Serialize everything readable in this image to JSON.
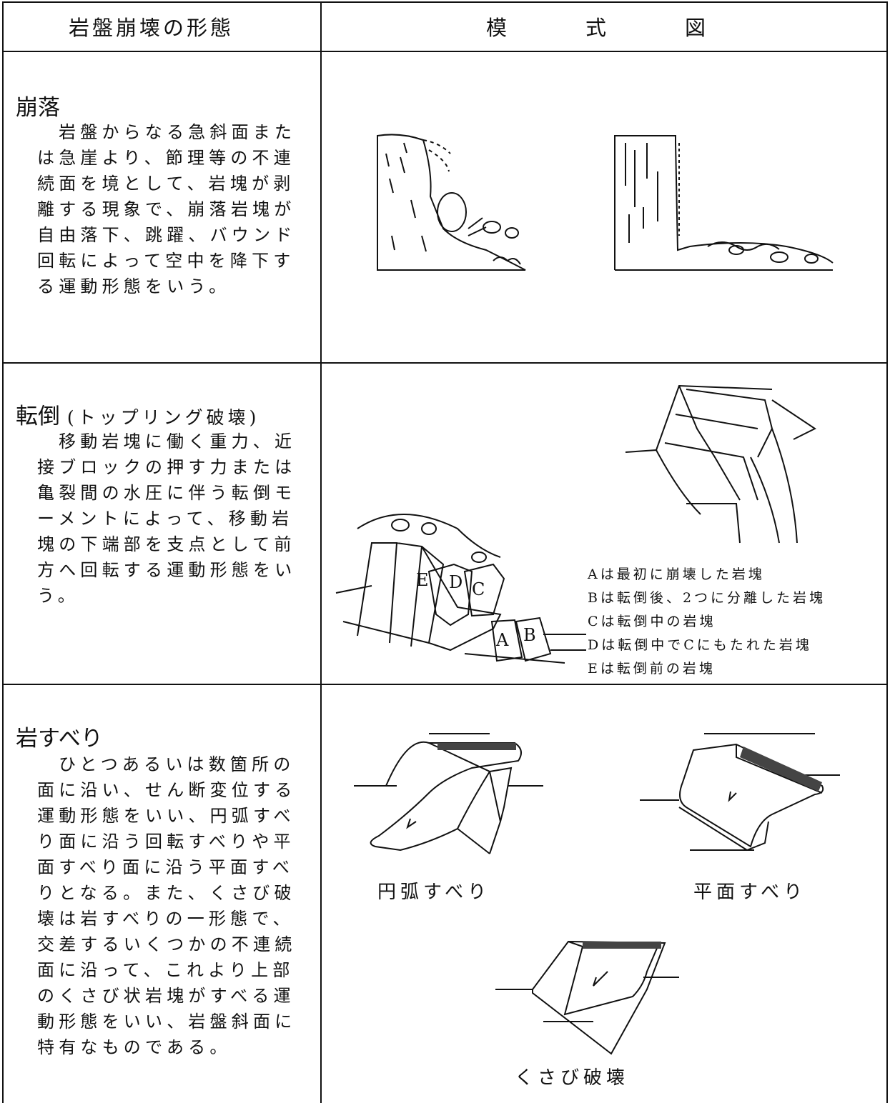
{
  "header": {
    "form": "岩盤崩壊の形態",
    "diagram": "模式図"
  },
  "rows": [
    {
      "title": "崩落",
      "description": [
        "岩盤からなる急斜面また",
        "は急崖より、節理等の不連",
        "続面を境として、岩塊が剥",
        "離する現象で、崩落岩塊が",
        "自由落下、跳躍、バウンド",
        "回転によって空中を降下す",
        "る運動形態をいう。"
      ]
    },
    {
      "title": "転倒",
      "subtitle": "(トップリング破壊)",
      "description": [
        "移動岩塊に働く重力、近",
        "接ブロックの押す力または",
        "亀裂間の水圧に伴う転倒モ",
        "ーメントによって、移動岩",
        "塊の下端部を支点として前",
        "方へ回転する運動形態をい",
        "う。"
      ],
      "diagram_labels": [
        "E",
        "D",
        "C",
        "A",
        "B"
      ],
      "legend": [
        "Aは最初に崩壊した岩塊",
        "Bは転倒後、2つに分離した岩塊",
        "Cは転倒中の岩塊",
        "Dは転倒中でCにもたれた岩塊",
        "Eは転倒前の岩塊"
      ]
    },
    {
      "title": "岩すべり",
      "description": [
        "ひとつあるいは数箇所の",
        "面に沿い、せん断変位する",
        "運動形態をいい、円弧すべ",
        "り面に沿う回転すべりや平",
        "面すべり面に沿う平面すべ",
        "りとなる。また、くさび破",
        "壊は岩すべりの一形態で、",
        "交差するいくつかの不連続",
        "面に沿って、これより上部",
        "のくさび状岩塊がすべる運",
        "動形態をいい、岩盤斜面に",
        "特有なものである。"
      ],
      "captions": [
        "円弧すべり",
        "平面すべり",
        "くさび破壊"
      ]
    }
  ]
}
